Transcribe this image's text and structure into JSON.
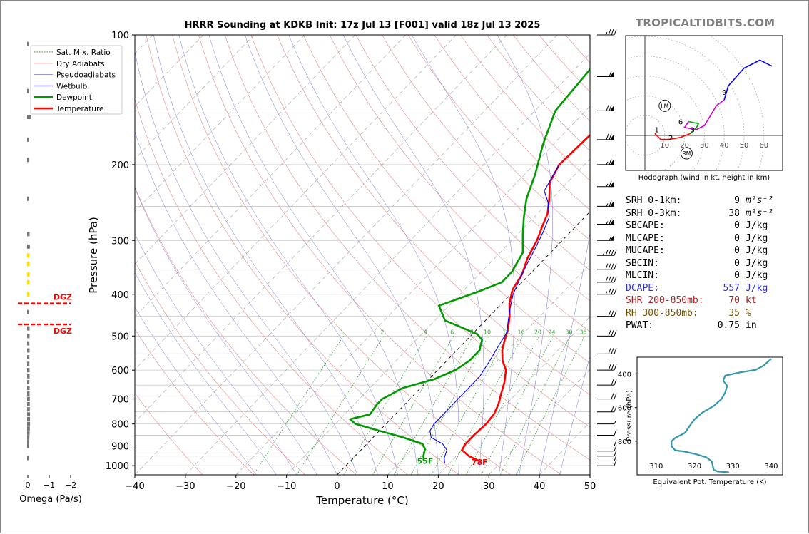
{
  "header": {
    "title": "HRRR Sounding at KDKB Init: 17z Jul 13 [F001] valid 18z Jul 13 2025",
    "brand": "TROPICALTIDBITS.COM"
  },
  "chart_data": [
    {
      "type": "line",
      "name": "skewt",
      "xlabel": "Temperature (°C)",
      "ylabel": "Pressure (hPa)",
      "xlim": [
        -40,
        50
      ],
      "ylim": [
        1050,
        100
      ],
      "y_scale": "log",
      "x_ticks": [
        -40,
        -30,
        -20,
        -10,
        0,
        10,
        20,
        30,
        40,
        50
      ],
      "y_ticks": [
        100,
        200,
        300,
        400,
        500,
        600,
        700,
        800,
        900,
        1000
      ],
      "legend_position": "top-left",
      "legend": [
        "Sat. Mix. Ratio",
        "Dry Adiabats",
        "Pseudoadiabats",
        "Wetbulb",
        "Dewpoint",
        "Temperature"
      ],
      "mixing_ratio_labels": [
        "1",
        "2",
        "4",
        "6",
        "8",
        "10",
        "13",
        "16",
        "20",
        "24",
        "30",
        "36"
      ],
      "series": [
        {
          "name": "Temperature",
          "color": "#ff0000",
          "points": [
            [
              26,
              980
            ],
            [
              22.5,
              950
            ],
            [
              20,
              920
            ],
            [
              19.5,
              890
            ],
            [
              19.5,
              850
            ],
            [
              19.8,
              800
            ],
            [
              19.5,
              760
            ],
            [
              18.5,
              720
            ],
            [
              17,
              680
            ],
            [
              15.5,
              640
            ],
            [
              13.5,
              600
            ],
            [
              11,
              570
            ],
            [
              9,
              540
            ],
            [
              7.5,
              510
            ],
            [
              6,
              480
            ],
            [
              4,
              450
            ],
            [
              1.5,
              420
            ],
            [
              -0.5,
              390
            ],
            [
              -1.5,
              360
            ],
            [
              -3.5,
              330
            ],
            [
              -5,
              300
            ],
            [
              -6.5,
              280
            ],
            [
              -8,
              260
            ],
            [
              -10.5,
              240
            ],
            [
              -13.5,
              220
            ],
            [
              -15,
              200
            ],
            [
              -14.5,
              170
            ],
            [
              -13.5,
              150
            ],
            [
              -11,
              135
            ],
            [
              -8,
              120
            ],
            [
              -6,
              110
            ],
            [
              -5,
              100
            ]
          ]
        },
        {
          "name": "Dewpoint",
          "color": "#009900",
          "points": [
            [
              14.5,
              975
            ],
            [
              13.5,
              950
            ],
            [
              12.5,
              915
            ],
            [
              11,
              890
            ],
            [
              6,
              860
            ],
            [
              0,
              830
            ],
            [
              -6,
              800
            ],
            [
              -8,
              780
            ],
            [
              -5,
              760
            ],
            [
              -5.5,
              720
            ],
            [
              -5.5,
              700
            ],
            [
              -4.5,
              680
            ],
            [
              -3.5,
              660
            ],
            [
              1,
              630
            ],
            [
              3.5,
              600
            ],
            [
              4.5,
              570
            ],
            [
              4.5,
              540
            ],
            [
              3,
              510
            ],
            [
              1,
              495
            ],
            [
              -8,
              460
            ],
            [
              -12,
              425
            ],
            [
              -7,
              395
            ],
            [
              -4,
              375
            ],
            [
              -4,
              355
            ],
            [
              -5.5,
              320
            ],
            [
              -9,
              290
            ],
            [
              -12,
              265
            ],
            [
              -15,
              240
            ],
            [
              -18,
              210
            ],
            [
              -22,
              180
            ],
            [
              -26,
              150
            ],
            [
              -27,
              120
            ],
            [
              -25,
              110
            ],
            [
              -23,
              100
            ]
          ]
        },
        {
          "name": "Wetbulb",
          "color": "#0000ff",
          "points": [
            [
              19,
              985
            ],
            [
              18,
              960
            ],
            [
              17,
              920
            ],
            [
              15,
              890
            ],
            [
              11.5,
              860
            ],
            [
              10,
              830
            ],
            [
              9.5,
              800
            ],
            [
              9.5,
              760
            ],
            [
              9.5,
              730
            ],
            [
              9.5,
              700
            ],
            [
              9.5,
              660
            ],
            [
              9.5,
              620
            ],
            [
              8.5,
              570
            ],
            [
              7.5,
              530
            ],
            [
              6.5,
              490
            ],
            [
              4.5,
              460
            ],
            [
              2.5,
              430
            ],
            [
              0.5,
              400
            ],
            [
              -1,
              370
            ],
            [
              -2.5,
              340
            ],
            [
              -4,
              310
            ],
            [
              -5.5,
              285
            ],
            [
              -7,
              265
            ],
            [
              -10,
              245
            ],
            [
              -13,
              230
            ],
            [
              -15,
              200
            ]
          ]
        }
      ],
      "annotations": [
        "55F",
        "78F"
      ],
      "wind_barbs_kt": [
        [
          1000,
          10
        ],
        [
          975,
          10
        ],
        [
          950,
          10
        ],
        [
          925,
          10
        ],
        [
          900,
          10
        ],
        [
          850,
          10
        ],
        [
          800,
          5
        ],
        [
          750,
          20
        ],
        [
          700,
          20
        ],
        [
          650,
          20
        ],
        [
          600,
          30
        ],
        [
          550,
          30
        ],
        [
          500,
          30
        ],
        [
          450,
          30
        ],
        [
          400,
          35
        ],
        [
          375,
          40
        ],
        [
          350,
          40
        ],
        [
          325,
          45
        ],
        [
          300,
          55
        ],
        [
          275,
          65
        ],
        [
          250,
          65
        ],
        [
          225,
          65
        ],
        [
          200,
          65
        ],
        [
          175,
          70
        ],
        [
          150,
          70
        ],
        [
          125,
          60
        ],
        [
          100,
          35
        ]
      ]
    },
    {
      "type": "line",
      "name": "hodograph",
      "xlabel": "Hodograph (wind in kt, height in km)",
      "rings_kt": [
        10,
        20,
        30,
        40,
        50,
        60
      ],
      "x_ticks": [
        10,
        20,
        30,
        40,
        50,
        60
      ],
      "segments": [
        {
          "color": "#ff0000",
          "points": [
            [
              5,
              1
            ],
            [
              8,
              -2
            ],
            [
              12,
              -2
            ],
            [
              18,
              -1
            ],
            [
              23,
              1
            ]
          ]
        },
        {
          "color": "#00aa00",
          "points": [
            [
              23,
              1
            ],
            [
              26,
              4
            ],
            [
              27,
              6
            ],
            [
              22,
              7
            ]
          ]
        },
        {
          "color": "#cc00cc",
          "points": [
            [
              22,
              7
            ],
            [
              20,
              4
            ],
            [
              26,
              3
            ],
            [
              30,
              5
            ],
            [
              36,
              15
            ],
            [
              40,
              18
            ]
          ]
        },
        {
          "color": "#0000ff",
          "points": [
            [
              40,
              18
            ],
            [
              42,
              25
            ],
            [
              50,
              34
            ],
            [
              58,
              38
            ],
            [
              64,
              35
            ]
          ]
        }
      ],
      "height_labels": [
        {
          "text": "1",
          "u": 6,
          "v": 3
        },
        {
          "text": "2",
          "u": 13,
          "v": -1
        },
        {
          "text": "3",
          "u": 24,
          "v": 3
        },
        {
          "text": "6",
          "u": 18,
          "v": 7
        },
        {
          "text": "9",
          "u": 40,
          "v": 22
        }
      ],
      "markers": [
        {
          "text": "LM",
          "u": 10,
          "v": 15
        },
        {
          "text": "RM",
          "u": 21,
          "v": -9
        }
      ]
    },
    {
      "type": "line",
      "name": "theta-e",
      "xlabel": "Equivalent Pot. Temperature (K)",
      "ylabel": "Pressure (hPa)",
      "xlim": [
        305,
        343
      ],
      "ylim": [
        1000,
        300
      ],
      "x_ticks": [
        310,
        320,
        330,
        340
      ],
      "y_ticks": [
        400,
        600,
        800
      ],
      "series": [
        {
          "name": "theta_e",
          "color": "#3399aa",
          "points": [
            [
              329,
              985
            ],
            [
              326,
              980
            ],
            [
              325,
              970
            ],
            [
              324.5,
              920
            ],
            [
              323,
              895
            ],
            [
              320,
              875
            ],
            [
              317,
              860
            ],
            [
              315,
              855
            ],
            [
              314,
              830
            ],
            [
              314,
              800
            ],
            [
              315,
              780
            ],
            [
              317.5,
              750
            ],
            [
              319,
              700
            ],
            [
              320,
              670
            ],
            [
              322,
              630
            ],
            [
              325,
              590
            ],
            [
              327,
              550
            ],
            [
              328,
              510
            ],
            [
              328.5,
              470
            ],
            [
              327.5,
              440
            ],
            [
              328,
              410
            ],
            [
              332,
              390
            ],
            [
              336,
              375
            ],
            [
              338,
              350
            ],
            [
              340,
              310
            ]
          ]
        }
      ]
    },
    {
      "type": "bar",
      "name": "omega",
      "xlabel": "Omega (Pa/s)",
      "x_ticks": [
        "0",
        "−1",
        "−2"
      ],
      "xlim": [
        0,
        -2
      ],
      "dgz_label": "DGZ",
      "dgz_pressures": [
        420,
        470
      ],
      "series": [
        {
          "name": "omega",
          "points": [
            [
              105,
              -0.01
            ],
            [
              135,
              -0.02
            ],
            [
              155,
              -0.1
            ],
            [
              175,
              -0.02
            ],
            [
              195,
              -0.01
            ],
            [
              240,
              -0.02
            ],
            [
              290,
              -0.05
            ],
            [
              310,
              -0.06
            ],
            [
              325,
              -0.04
            ],
            [
              340,
              -0.05
            ],
            [
              360,
              -0.05
            ],
            [
              375,
              -0.04
            ],
            [
              400,
              -0.03
            ],
            [
              440,
              -0.02
            ],
            [
              480,
              -0.05
            ],
            [
              500,
              -0.05
            ],
            [
              520,
              -0.04
            ],
            [
              540,
              -0.05
            ],
            [
              560,
              -0.04
            ],
            [
              580,
              -0.04
            ],
            [
              600,
              -0.05
            ],
            [
              620,
              -0.05
            ],
            [
              640,
              -0.04
            ],
            [
              660,
              -0.05
            ],
            [
              680,
              -0.05
            ],
            [
              700,
              -0.06
            ],
            [
              720,
              -0.06
            ],
            [
              740,
              -0.06
            ],
            [
              760,
              -0.07
            ],
            [
              780,
              -0.07
            ],
            [
              800,
              -0.07
            ],
            [
              820,
              -0.06
            ],
            [
              840,
              -0.05
            ],
            [
              860,
              -0.04
            ],
            [
              880,
              -0.03
            ],
            [
              900,
              -0.02
            ],
            [
              960,
              -0.01
            ]
          ]
        }
      ],
      "colors": {
        "gray": "#777777",
        "yellow": "#ffdd00",
        "dgz": "#ff0000"
      }
    }
  ],
  "params": [
    {
      "label": "SRH 0-1km:",
      "value": "9",
      "unit": "m²s⁻²",
      "color": "#000000"
    },
    {
      "label": "SRH 0-3km:",
      "value": "38",
      "unit": "m²s⁻²",
      "color": "#000000"
    },
    {
      "label": "SBCAPE:",
      "value": "0",
      "unit": "J/kg",
      "color": "#000000"
    },
    {
      "label": "MLCAPE:",
      "value": "0",
      "unit": "J/kg",
      "color": "#000000"
    },
    {
      "label": "MUCAPE:",
      "value": "0",
      "unit": "J/kg",
      "color": "#000000"
    },
    {
      "label": "SBCIN:",
      "value": "0",
      "unit": "J/kg",
      "color": "#000000"
    },
    {
      "label": "MLCIN:",
      "value": "0",
      "unit": "J/kg",
      "color": "#000000"
    },
    {
      "label": "DCAPE:",
      "value": "557",
      "unit": "J/kg",
      "color": "#3333cc"
    },
    {
      "label": "SHR 200-850mb:",
      "value": "70",
      "unit": "kt",
      "color": "#aa2222"
    },
    {
      "label": "RH 300-850mb:",
      "value": "35",
      "unit": "%",
      "color": "#775500"
    },
    {
      "label": "PWAT:",
      "value": "0.75",
      "unit": "in",
      "color": "#000000"
    }
  ]
}
